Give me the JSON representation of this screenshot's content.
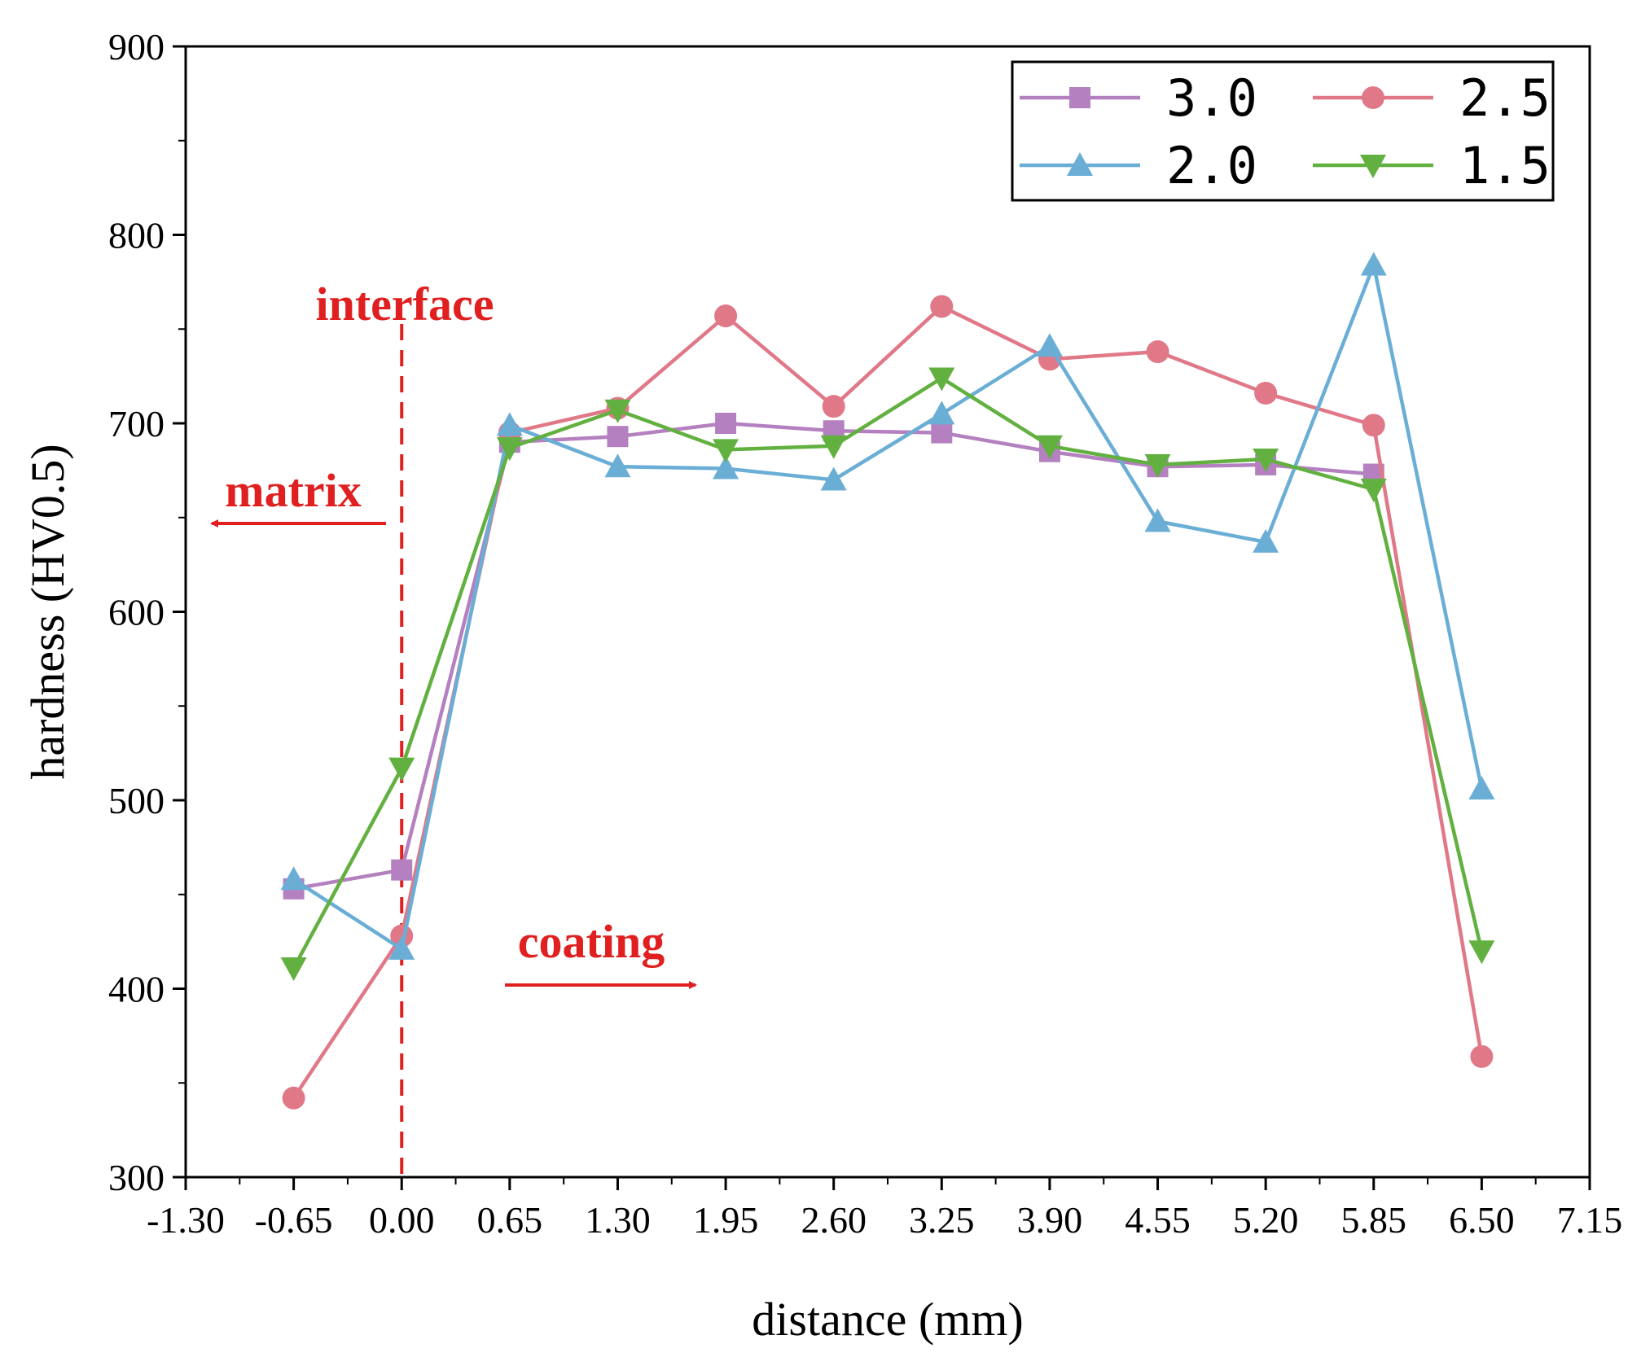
{
  "chart_data": {
    "type": "line",
    "title": "",
    "xlabel": "distance (mm)",
    "ylabel": "hardness (HV0.5)",
    "xlim": [
      -1.3,
      7.15
    ],
    "ylim": [
      300,
      900
    ],
    "x_ticks": [
      "-1.30",
      "-0.65",
      "0.00",
      "0.65",
      "1.30",
      "1.95",
      "2.60",
      "3.25",
      "3.90",
      "4.55",
      "5.20",
      "5.85",
      "6.50",
      "7.15"
    ],
    "y_ticks": [
      "300",
      "400",
      "500",
      "600",
      "700",
      "800",
      "900"
    ],
    "x": [
      -0.65,
      0.0,
      0.65,
      1.3,
      1.95,
      2.6,
      3.25,
      3.9,
      4.55,
      5.2,
      5.85,
      6.5
    ],
    "legend_position": "top-right",
    "series": [
      {
        "name": "3.0",
        "color": "#b480c0",
        "marker": "square",
        "values": [
          453,
          463,
          690,
          693,
          700,
          696,
          695,
          685,
          677,
          678,
          673,
          null
        ]
      },
      {
        "name": "2.5",
        "color": "#e07888",
        "marker": "circle",
        "values": [
          342,
          428,
          695,
          708,
          757,
          709,
          762,
          734,
          738,
          716,
          699,
          364
        ]
      },
      {
        "name": "2.0",
        "color": "#6aaed6",
        "marker": "triangle-up",
        "values": [
          458,
          421,
          699,
          677,
          676,
          670,
          705,
          741,
          648,
          637,
          784,
          506
        ]
      },
      {
        "name": "1.5",
        "color": "#62b040",
        "marker": "triangle-down",
        "values": [
          411,
          517,
          687,
          707,
          686,
          688,
          724,
          688,
          678,
          681,
          665,
          420
        ]
      }
    ],
    "annotations": {
      "interface": "interface",
      "matrix": "matrix",
      "coating": "coating",
      "interface_x": 0.0,
      "color": "#e02020"
    }
  }
}
